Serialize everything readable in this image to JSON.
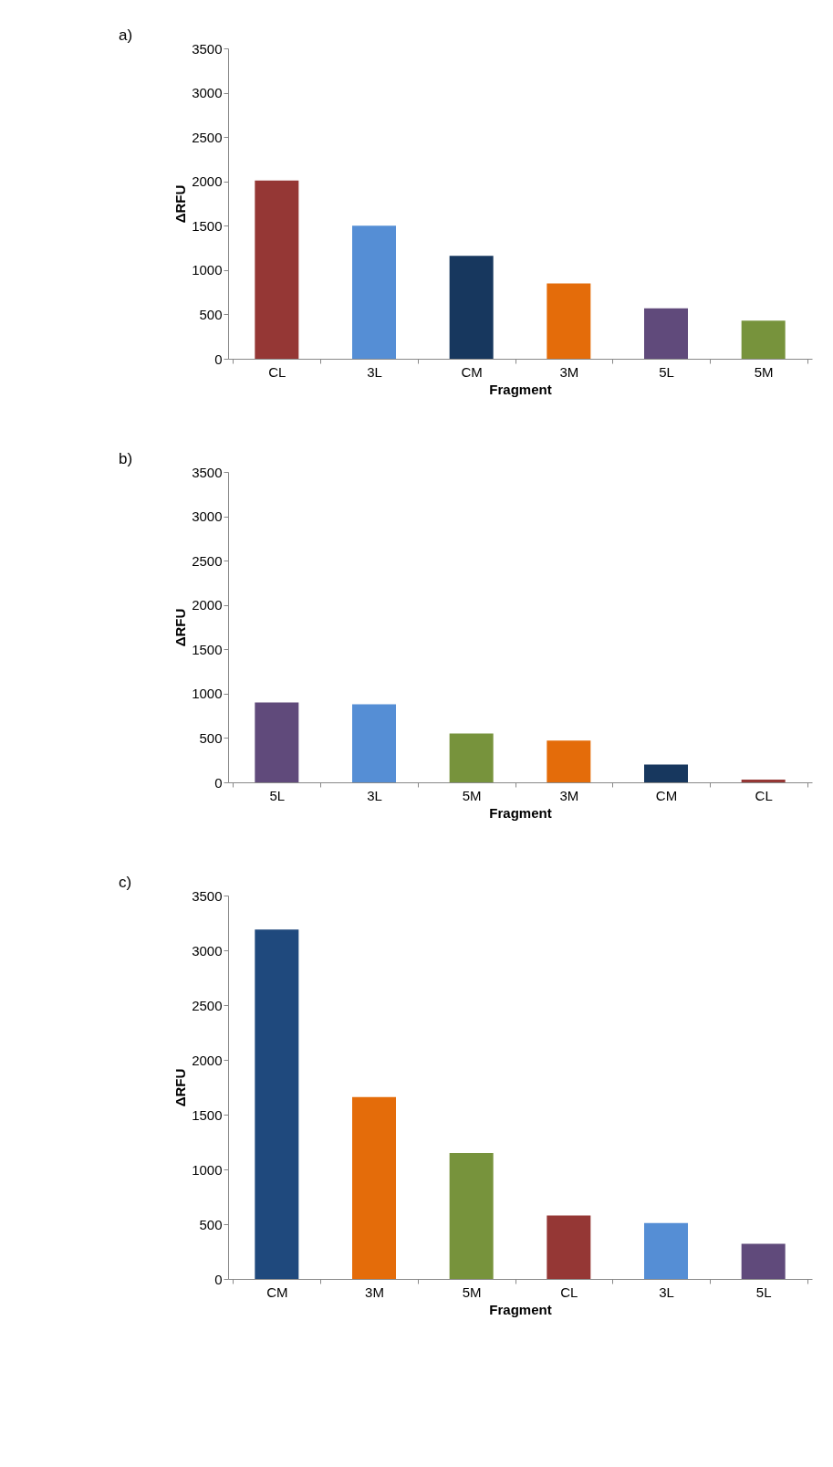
{
  "chart_data": [
    {
      "type": "bar",
      "annotations": [
        "a)"
      ],
      "xlabel": "Fragment",
      "ylabel": "ΔRFU",
      "categories": [
        "CL",
        "3L",
        "CM",
        "3M",
        "5L",
        "5M"
      ],
      "values": [
        2010,
        1500,
        1160,
        850,
        570,
        430
      ],
      "colors": [
        "#953735",
        "#558ed5",
        "#17375e",
        "#e46c0a",
        "#604a7b",
        "#77933c"
      ],
      "ylim": [
        0,
        3500
      ],
      "yticks": [
        0,
        500,
        1000,
        1500,
        2000,
        2500,
        3000,
        3500
      ],
      "grid": false
    },
    {
      "type": "bar",
      "annotations": [
        "b)"
      ],
      "xlabel": "Fragment",
      "ylabel": "ΔRFU",
      "categories": [
        "5L",
        "3L",
        "5M",
        "3M",
        "CM",
        "CL"
      ],
      "values": [
        900,
        880,
        550,
        470,
        200,
        30
      ],
      "colors": [
        "#604a7b",
        "#558ed5",
        "#77933c",
        "#e46c0a",
        "#17375e",
        "#953735"
      ],
      "ylim": [
        0,
        3500
      ],
      "yticks": [
        0,
        500,
        1000,
        1500,
        2000,
        2500,
        3000,
        3500
      ],
      "grid": false
    },
    {
      "type": "bar",
      "annotations": [
        "c)"
      ],
      "xlabel": "Fragment",
      "ylabel": "ΔRFU",
      "categories": [
        "CM",
        "3M",
        "5M",
        "CL",
        "3L",
        "5L"
      ],
      "values": [
        3190,
        1660,
        1150,
        580,
        510,
        320
      ],
      "colors": [
        "#1f497d",
        "#e46c0a",
        "#77933c",
        "#953735",
        "#558ed5",
        "#604a7b"
      ],
      "ylim": [
        0,
        3500
      ],
      "yticks": [
        0,
        500,
        1000,
        1500,
        2000,
        2500,
        3000,
        3500
      ],
      "grid": false
    }
  ]
}
